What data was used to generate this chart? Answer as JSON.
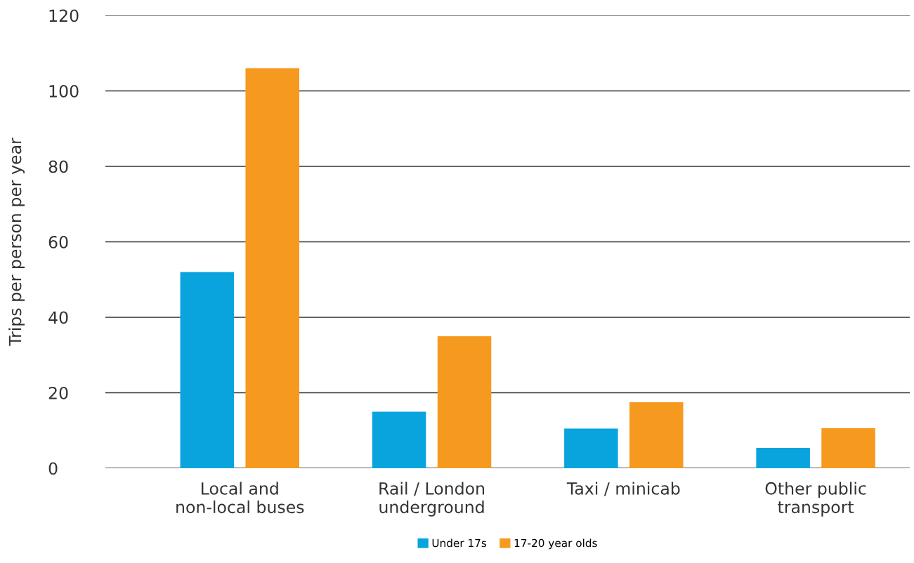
{
  "chart_data": {
    "type": "bar",
    "ylabel": "Trips per person per year",
    "categories": [
      "Local and\nnon-local buses",
      "Rail / London\nunderground",
      "Taxi / minicab",
      "Other public\ntransport"
    ],
    "series": [
      {
        "name": "Under 17s",
        "color": "#09a3dd",
        "values": [
          52,
          15,
          10.5,
          5.4
        ]
      },
      {
        "name": "17-20 year olds",
        "color": "#f59a1f",
        "values": [
          106,
          35,
          17.5,
          10.6
        ]
      }
    ],
    "ylim": [
      0,
      120
    ],
    "yticks": [
      0,
      20,
      40,
      60,
      80,
      100,
      120
    ],
    "grid": "y",
    "legend": "bottom"
  }
}
